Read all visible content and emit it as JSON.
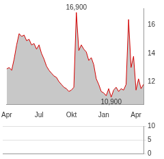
{
  "chart_data": [
    {
      "type": "line",
      "categories": [
        "Apr",
        null,
        null,
        null,
        null,
        null,
        null,
        null,
        null,
        null,
        null,
        null,
        null,
        "Jul",
        null,
        null,
        null,
        null,
        null,
        null,
        null,
        null,
        null,
        null,
        null,
        null,
        "Okt",
        null,
        null,
        null,
        null,
        null,
        null,
        null,
        null,
        null,
        null,
        null,
        null,
        "Jan",
        null,
        null,
        null,
        null,
        null,
        null,
        null,
        null,
        null,
        null,
        null,
        null,
        "Apr",
        null,
        null,
        null
      ],
      "values": [
        12.9,
        13.0,
        12.8,
        13.6,
        14.6,
        15.4,
        15.2,
        15.3,
        14.9,
        15.0,
        14.6,
        14.7,
        14.3,
        14.6,
        14.0,
        13.6,
        13.1,
        12.8,
        12.6,
        12.4,
        12.3,
        12.0,
        11.8,
        11.6,
        11.5,
        11.3,
        11.4,
        11.6,
        16.9,
        14.2,
        14.6,
        14.3,
        14.1,
        13.5,
        13.7,
        13.2,
        12.2,
        11.8,
        11.3,
        11.2,
        11.0,
        11.5,
        10.9,
        11.4,
        11.6,
        11.3,
        11.5,
        11.4,
        11.8,
        16.4,
        13.0,
        13.8,
        11.4,
        12.2,
        11.5,
        11.8
      ],
      "color": "#d40000",
      "ylim": [
        10.4,
        17.2
      ],
      "yticks": [
        12,
        14,
        16
      ],
      "grid": false,
      "annotations": [
        {
          "label": "16,900",
          "value": 16.9
        },
        {
          "label": "10,900",
          "value": 10.9
        }
      ]
    },
    {
      "type": "bar",
      "categories": [
        "Apr",
        null,
        null,
        null,
        null,
        null,
        null,
        null,
        null,
        null,
        null,
        null,
        null,
        "Jul",
        null,
        null,
        null,
        null,
        null,
        null,
        null,
        null,
        null,
        null,
        null,
        null,
        "Okt",
        null,
        null,
        null,
        null,
        null,
        null,
        null,
        null,
        null,
        null,
        null,
        null,
        "Jan",
        null,
        null,
        null,
        null,
        null,
        null,
        null,
        null,
        null,
        null,
        null,
        null,
        "Apr",
        null,
        null,
        null
      ],
      "values": [
        0,
        0,
        0,
        0,
        0,
        0,
        0,
        0,
        0,
        0,
        0,
        0,
        0,
        0,
        0,
        0,
        0,
        0,
        0,
        0,
        0,
        0,
        0,
        0,
        0,
        0,
        0,
        0,
        0,
        0,
        0,
        0,
        0,
        0,
        0,
        0,
        0,
        0,
        0,
        0,
        0,
        0,
        0,
        0,
        0,
        0,
        0,
        0,
        0,
        0,
        0,
        0,
        0,
        0,
        0,
        0
      ],
      "color": "#9a9a9a",
      "ylim": [
        0,
        10
      ],
      "yticks": [
        0,
        5,
        10
      ],
      "grid": true,
      "tick_labels": "y"
    }
  ]
}
